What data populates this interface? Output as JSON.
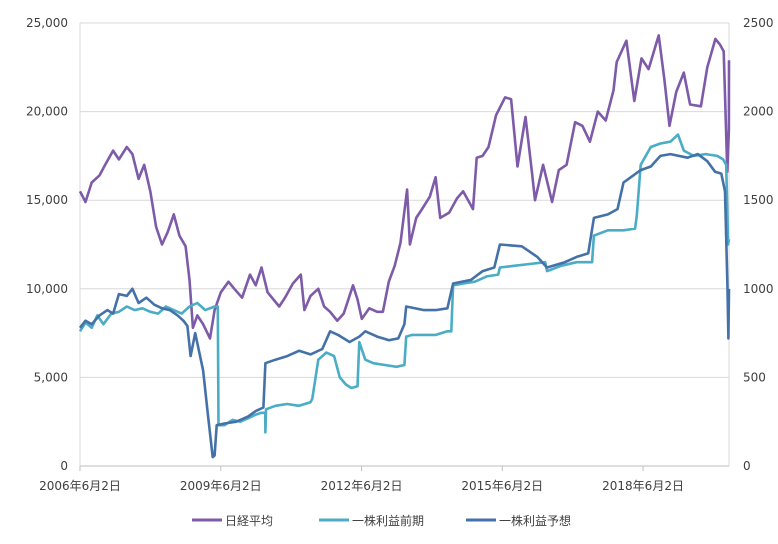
{
  "chart_data": {
    "type": "line",
    "title": "",
    "xlabel": "",
    "ylabel": "",
    "x_range": [
      "2006-06-02",
      "2020-04-01"
    ],
    "x_tick_labels": [
      "2006年6月2日",
      "2009年6月2日",
      "2012年6月2日",
      "2015年6月2日",
      "2018年6月2日"
    ],
    "x_tick_dates": [
      "2006-06-02",
      "2009-06-02",
      "2012-06-02",
      "2015-06-02",
      "2018-06-02"
    ],
    "y_left": {
      "lim": [
        0,
        25000
      ],
      "ticks": [
        0,
        5000,
        10000,
        15000,
        20000,
        25000
      ],
      "tick_labels": [
        "0",
        "5,000",
        "10,000",
        "15,000",
        "20,000",
        "25,000"
      ]
    },
    "y_right": {
      "lim": [
        0,
        2500
      ],
      "ticks": [
        0,
        500,
        1000,
        1500,
        2000,
        2500
      ],
      "tick_labels": [
        "0",
        "500",
        "1000",
        "1500",
        "2000",
        "2500"
      ]
    },
    "grid": true,
    "legend_position": "bottom",
    "series": [
      {
        "name": "日経平均",
        "axis": "left",
        "color": "#7e5ba8",
        "points": [
          [
            "2006-06-02",
            15500
          ],
          [
            "2006-07-15",
            14900
          ],
          [
            "2006-09-01",
            16000
          ],
          [
            "2006-11-01",
            16400
          ],
          [
            "2006-12-15",
            17000
          ],
          [
            "2007-02-15",
            17800
          ],
          [
            "2007-04-01",
            17300
          ],
          [
            "2007-06-01",
            18000
          ],
          [
            "2007-07-15",
            17600
          ],
          [
            "2007-09-01",
            16200
          ],
          [
            "2007-10-15",
            17000
          ],
          [
            "2007-12-01",
            15500
          ],
          [
            "2008-01-15",
            13500
          ],
          [
            "2008-03-01",
            12500
          ],
          [
            "2008-04-15",
            13200
          ],
          [
            "2008-06-01",
            14200
          ],
          [
            "2008-07-15",
            13000
          ],
          [
            "2008-09-01",
            12400
          ],
          [
            "2008-10-01",
            10500
          ],
          [
            "2008-10-28",
            7800
          ],
          [
            "2008-12-01",
            8500
          ],
          [
            "2009-01-15",
            8000
          ],
          [
            "2009-03-10",
            7200
          ],
          [
            "2009-04-15",
            8800
          ],
          [
            "2009-06-02",
            9800
          ],
          [
            "2009-08-01",
            10400
          ],
          [
            "2009-09-15",
            10000
          ],
          [
            "2009-11-15",
            9500
          ],
          [
            "2010-01-15",
            10800
          ],
          [
            "2010-03-01",
            10200
          ],
          [
            "2010-04-15",
            11200
          ],
          [
            "2010-06-01",
            9800
          ],
          [
            "2010-08-31",
            9000
          ],
          [
            "2010-10-15",
            9500
          ],
          [
            "2010-12-15",
            10300
          ],
          [
            "2011-02-15",
            10800
          ],
          [
            "2011-03-15",
            8800
          ],
          [
            "2011-05-01",
            9600
          ],
          [
            "2011-07-01",
            10000
          ],
          [
            "2011-08-15",
            9000
          ],
          [
            "2011-10-01",
            8700
          ],
          [
            "2011-11-25",
            8200
          ],
          [
            "2012-01-15",
            8600
          ],
          [
            "2012-03-27",
            10200
          ],
          [
            "2012-05-01",
            9400
          ],
          [
            "2012-06-04",
            8300
          ],
          [
            "2012-08-01",
            8900
          ],
          [
            "2012-10-01",
            8700
          ],
          [
            "2012-11-15",
            8700
          ],
          [
            "2012-12-31",
            10400
          ],
          [
            "2013-02-15",
            11300
          ],
          [
            "2013-04-01",
            12600
          ],
          [
            "2013-05-22",
            15600
          ],
          [
            "2013-06-13",
            12500
          ],
          [
            "2013-08-01",
            14000
          ],
          [
            "2013-09-15",
            14500
          ],
          [
            "2013-11-15",
            15200
          ],
          [
            "2013-12-30",
            16300
          ],
          [
            "2014-02-04",
            14000
          ],
          [
            "2014-04-15",
            14300
          ],
          [
            "2014-06-15",
            15100
          ],
          [
            "2014-08-01",
            15500
          ],
          [
            "2014-10-17",
            14500
          ],
          [
            "2014-11-15",
            17400
          ],
          [
            "2014-12-31",
            17500
          ],
          [
            "2015-02-15",
            18000
          ],
          [
            "2015-04-15",
            19800
          ],
          [
            "2015-06-24",
            20800
          ],
          [
            "2015-08-10",
            20700
          ],
          [
            "2015-09-29",
            16900
          ],
          [
            "2015-11-30",
            19700
          ],
          [
            "2016-01-20",
            16500
          ],
          [
            "2016-02-12",
            15000
          ],
          [
            "2016-04-15",
            17000
          ],
          [
            "2016-06-24",
            14900
          ],
          [
            "2016-08-15",
            16700
          ],
          [
            "2016-10-15",
            17000
          ],
          [
            "2016-12-20",
            19400
          ],
          [
            "2017-02-15",
            19200
          ],
          [
            "2017-04-14",
            18300
          ],
          [
            "2017-06-15",
            20000
          ],
          [
            "2017-08-15",
            19500
          ],
          [
            "2017-10-15",
            21200
          ],
          [
            "2017-11-09",
            22800
          ],
          [
            "2018-01-23",
            24000
          ],
          [
            "2018-03-26",
            20600
          ],
          [
            "2018-05-21",
            23000
          ],
          [
            "2018-07-15",
            22400
          ],
          [
            "2018-10-02",
            24300
          ],
          [
            "2018-11-15",
            21800
          ],
          [
            "2018-12-25",
            19200
          ],
          [
            "2019-02-15",
            21100
          ],
          [
            "2019-04-15",
            22200
          ],
          [
            "2019-06-03",
            20400
          ],
          [
            "2019-08-26",
            20300
          ],
          [
            "2019-10-15",
            22500
          ],
          [
            "2019-12-17",
            24100
          ],
          [
            "2020-01-20",
            23800
          ],
          [
            "2020-02-20",
            23400
          ],
          [
            "2020-03-19",
            16600
          ],
          [
            "2020-03-31",
            19000
          ],
          [
            "2020-04-01",
            22900
          ]
        ]
      },
      {
        "name": "一株利益前期",
        "axis": "right",
        "color": "#4bacc6",
        "points": [
          [
            "2006-06-02",
            760
          ],
          [
            "2006-07-15",
            810
          ],
          [
            "2006-09-01",
            780
          ],
          [
            "2006-10-15",
            850
          ],
          [
            "2006-12-01",
            800
          ],
          [
            "2007-02-01",
            860
          ],
          [
            "2007-04-01",
            870
          ],
          [
            "2007-06-01",
            900
          ],
          [
            "2007-08-01",
            880
          ],
          [
            "2007-10-01",
            890
          ],
          [
            "2007-12-01",
            870
          ],
          [
            "2008-02-01",
            860
          ],
          [
            "2008-04-01",
            900
          ],
          [
            "2008-06-01",
            880
          ],
          [
            "2008-08-01",
            860
          ],
          [
            "2008-10-01",
            900
          ],
          [
            "2008-12-01",
            920
          ],
          [
            "2009-02-01",
            880
          ],
          [
            "2009-04-15",
            900
          ],
          [
            "2009-05-10",
            900
          ],
          [
            "2009-05-15",
            230
          ],
          [
            "2009-07-01",
            230
          ],
          [
            "2009-09-01",
            260
          ],
          [
            "2009-11-01",
            250
          ],
          [
            "2010-01-01",
            270
          ],
          [
            "2010-03-01",
            290
          ],
          [
            "2010-04-15",
            300
          ],
          [
            "2010-05-14",
            300
          ],
          [
            "2010-05-15",
            190
          ],
          [
            "2010-05-20",
            320
          ],
          [
            "2010-08-01",
            340
          ],
          [
            "2010-11-01",
            350
          ],
          [
            "2011-02-01",
            340
          ],
          [
            "2011-05-01",
            360
          ],
          [
            "2011-05-15",
            380
          ],
          [
            "2011-07-01",
            600
          ],
          [
            "2011-09-01",
            640
          ],
          [
            "2011-11-01",
            620
          ],
          [
            "2011-12-15",
            500
          ],
          [
            "2012-02-01",
            460
          ],
          [
            "2012-03-15",
            440
          ],
          [
            "2012-05-01",
            450
          ],
          [
            "2012-05-15",
            700
          ],
          [
            "2012-07-01",
            600
          ],
          [
            "2012-09-01",
            580
          ],
          [
            "2012-12-01",
            570
          ],
          [
            "2013-03-01",
            560
          ],
          [
            "2013-05-01",
            570
          ],
          [
            "2013-05-15",
            730
          ],
          [
            "2013-07-01",
            740
          ],
          [
            "2013-10-01",
            740
          ],
          [
            "2014-01-01",
            740
          ],
          [
            "2014-04-01",
            760
          ],
          [
            "2014-05-01",
            760
          ],
          [
            "2014-05-15",
            1020
          ],
          [
            "2014-08-01",
            1030
          ],
          [
            "2014-11-01",
            1040
          ],
          [
            "2015-02-01",
            1070
          ],
          [
            "2015-05-01",
            1080
          ],
          [
            "2015-05-15",
            1120
          ],
          [
            "2015-09-01",
            1130
          ],
          [
            "2016-01-01",
            1140
          ],
          [
            "2016-05-01",
            1150
          ],
          [
            "2016-05-15",
            1100
          ],
          [
            "2016-09-01",
            1130
          ],
          [
            "2017-01-01",
            1150
          ],
          [
            "2017-05-01",
            1150
          ],
          [
            "2017-05-15",
            1300
          ],
          [
            "2017-09-01",
            1330
          ],
          [
            "2018-01-01",
            1330
          ],
          [
            "2018-04-01",
            1340
          ],
          [
            "2018-04-15",
            1420
          ],
          [
            "2018-05-15",
            1700
          ],
          [
            "2018-08-01",
            1800
          ],
          [
            "2018-10-15",
            1820
          ],
          [
            "2019-01-01",
            1830
          ],
          [
            "2019-03-01",
            1870
          ],
          [
            "2019-04-15",
            1780
          ],
          [
            "2019-07-01",
            1750
          ],
          [
            "2019-10-01",
            1760
          ],
          [
            "2020-01-01",
            1750
          ],
          [
            "2020-02-15",
            1730
          ],
          [
            "2020-03-10",
            1700
          ],
          [
            "2020-03-25",
            1250
          ],
          [
            "2020-04-01",
            1280
          ]
        ]
      },
      {
        "name": "一株利益予想",
        "axis": "right",
        "color": "#4472a8",
        "points": [
          [
            "2006-06-02",
            780
          ],
          [
            "2006-07-15",
            820
          ],
          [
            "2006-09-01",
            800
          ],
          [
            "2006-11-01",
            850
          ],
          [
            "2007-01-01",
            880
          ],
          [
            "2007-02-15",
            860
          ],
          [
            "2007-04-01",
            970
          ],
          [
            "2007-06-01",
            960
          ],
          [
            "2007-07-15",
            1000
          ],
          [
            "2007-09-01",
            920
          ],
          [
            "2007-11-01",
            950
          ],
          [
            "2008-01-01",
            910
          ],
          [
            "2008-03-01",
            890
          ],
          [
            "2008-05-01",
            880
          ],
          [
            "2008-07-01",
            850
          ],
          [
            "2008-08-15",
            820
          ],
          [
            "2008-09-15",
            790
          ],
          [
            "2008-10-10",
            620
          ],
          [
            "2008-11-15",
            750
          ],
          [
            "2009-01-15",
            540
          ],
          [
            "2009-02-20",
            300
          ],
          [
            "2009-03-31",
            50
          ],
          [
            "2009-04-15",
            60
          ],
          [
            "2009-05-01",
            230
          ],
          [
            "2009-07-01",
            240
          ],
          [
            "2009-10-01",
            250
          ],
          [
            "2010-01-01",
            280
          ],
          [
            "2010-03-01",
            310
          ],
          [
            "2010-04-30",
            330
          ],
          [
            "2010-05-15",
            580
          ],
          [
            "2010-08-01",
            600
          ],
          [
            "2010-11-01",
            620
          ],
          [
            "2011-02-01",
            650
          ],
          [
            "2011-05-01",
            630
          ],
          [
            "2011-08-01",
            660
          ],
          [
            "2011-10-01",
            760
          ],
          [
            "2011-12-01",
            740
          ],
          [
            "2012-03-01",
            700
          ],
          [
            "2012-05-15",
            730
          ],
          [
            "2012-07-01",
            760
          ],
          [
            "2012-10-01",
            730
          ],
          [
            "2013-01-01",
            710
          ],
          [
            "2013-03-15",
            720
          ],
          [
            "2013-05-01",
            800
          ],
          [
            "2013-05-15",
            900
          ],
          [
            "2013-10-01",
            880
          ],
          [
            "2014-01-01",
            880
          ],
          [
            "2014-04-01",
            890
          ],
          [
            "2014-05-15",
            1030
          ],
          [
            "2014-10-01",
            1050
          ],
          [
            "2015-01-01",
            1100
          ],
          [
            "2015-04-01",
            1120
          ],
          [
            "2015-05-15",
            1250
          ],
          [
            "2015-11-01",
            1240
          ],
          [
            "2016-03-01",
            1180
          ],
          [
            "2016-05-15",
            1120
          ],
          [
            "2016-10-01",
            1150
          ],
          [
            "2017-01-01",
            1180
          ],
          [
            "2017-04-01",
            1200
          ],
          [
            "2017-05-15",
            1400
          ],
          [
            "2017-09-01",
            1420
          ],
          [
            "2017-11-15",
            1450
          ],
          [
            "2018-01-01",
            1600
          ],
          [
            "2018-05-15",
            1670
          ],
          [
            "2018-08-01",
            1690
          ],
          [
            "2018-10-15",
            1750
          ],
          [
            "2019-01-01",
            1760
          ],
          [
            "2019-05-15",
            1740
          ],
          [
            "2019-08-01",
            1760
          ],
          [
            "2019-10-15",
            1720
          ],
          [
            "2019-12-15",
            1660
          ],
          [
            "2020-02-01",
            1650
          ],
          [
            "2020-03-01",
            1550
          ],
          [
            "2020-03-20",
            1000
          ],
          [
            "2020-03-27",
            720
          ],
          [
            "2020-04-01",
            1000
          ]
        ]
      }
    ]
  }
}
